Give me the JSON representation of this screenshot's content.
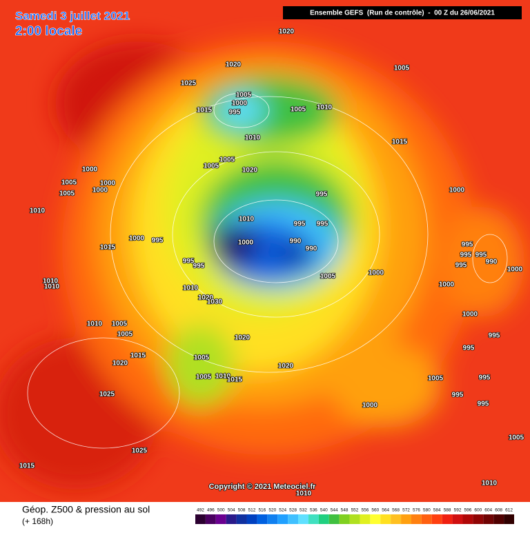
{
  "header": {
    "date": "Samedi 3 juillet 2021",
    "time": "2:00 locale",
    "run": "Ensemble GEFS  (Run de contrôle)  -  00 Z du 26/06/2021"
  },
  "copyright": "Copyright © 2021 Meteociel.fr",
  "legend": {
    "title": "Géop. Z500 & pression au sol",
    "lead": "(+ 168h)",
    "ticks": [
      492,
      496,
      500,
      504,
      508,
      512,
      516,
      520,
      524,
      528,
      532,
      536,
      540,
      544,
      548,
      552,
      556,
      560,
      564,
      568,
      572,
      576,
      580,
      584,
      588,
      592,
      596,
      600,
      604,
      608,
      612
    ],
    "colors": [
      "#2b0030",
      "#4a0060",
      "#6a0090",
      "#2a1a8a",
      "#1030a0",
      "#0040c0",
      "#0060e0",
      "#1080f0",
      "#20a0ff",
      "#40c0ff",
      "#60e0ff",
      "#40e0c0",
      "#20d080",
      "#40c040",
      "#80d020",
      "#b0e020",
      "#e0f020",
      "#ffff30",
      "#ffe020",
      "#ffc020",
      "#ffa010",
      "#ff8010",
      "#ff6010",
      "#ff4010",
      "#f02010",
      "#d01010",
      "#b00808",
      "#900505",
      "#700303",
      "#500000",
      "#300000"
    ]
  },
  "isobar_labels": [
    1020,
    1020,
    1005,
    1025,
    1005,
    1000,
    995,
    1015,
    1005,
    1010,
    1010,
    1015,
    1005,
    1005,
    1020,
    1000,
    1005,
    1000,
    1005,
    1000,
    1000,
    995,
    1010,
    1010,
    995,
    995,
    1000,
    995,
    1000,
    990,
    990,
    1015,
    995,
    995,
    995,
    990,
    995,
    1000,
    995,
    995,
    1000,
    1005,
    1010,
    1010,
    1000,
    1010,
    1020,
    1030,
    1000,
    1010,
    1005,
    1005,
    995,
    1020,
    995,
    1020,
    1015,
    1005,
    1020,
    1005,
    1010,
    1015,
    1005,
    995,
    995,
    995,
    1000,
    1025,
    1025,
    1005,
    1015,
    1010,
    1010
  ]
}
